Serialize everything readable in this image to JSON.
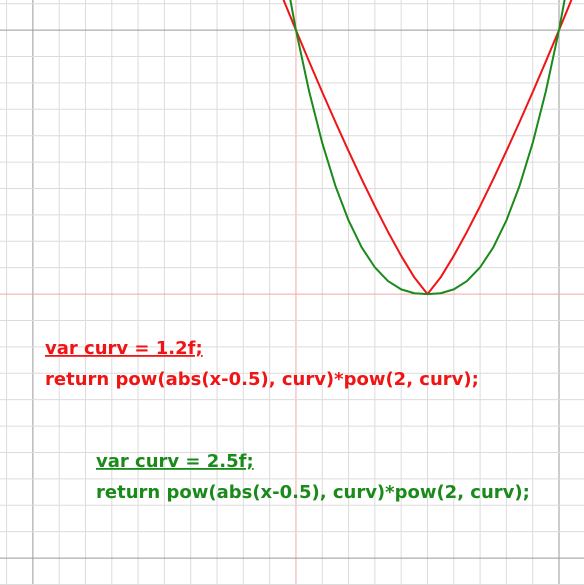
{
  "chart_data": {
    "type": "line",
    "x": [
      -0.05,
      0,
      0.05,
      0.1,
      0.15,
      0.2,
      0.25,
      0.3,
      0.35,
      0.4,
      0.45,
      0.5,
      0.55,
      0.6,
      0.65,
      0.7,
      0.75,
      0.8,
      0.85,
      0.9,
      0.95,
      1,
      1.05
    ],
    "series": [
      {
        "color": "#f01414",
        "values": [
          1.1212,
          1,
          0.8812,
          0.7651,
          0.6518,
          0.5417,
          0.4353,
          0.333,
          0.2358,
          0.145,
          0.0631,
          0,
          0.0631,
          0.145,
          0.2358,
          0.333,
          0.4353,
          0.5417,
          0.6518,
          0.7651,
          0.8812,
          1,
          1.1212
        ]
      },
      {
        "color": "#1a8a1a",
        "values": [
          1.269,
          1,
          0.7684,
          0.5724,
          0.41,
          0.2789,
          0.1768,
          0.1012,
          0.0493,
          0.0179,
          0.0032,
          0,
          0.0032,
          0.0179,
          0.0493,
          0.1012,
          0.1768,
          0.2789,
          0.41,
          0.5724,
          0.7684,
          1,
          1.269
        ]
      }
    ],
    "xlim": [
      -1.125,
      1.095
    ],
    "ylim": [
      -1.102,
      1.114
    ],
    "xticks": [
      -1.1,
      -1,
      -0.9,
      -0.8,
      -0.7,
      -0.6,
      -0.5,
      -0.4,
      -0.3,
      -0.2,
      -0.1,
      0,
      0.1,
      0.2,
      0.3,
      0.4,
      0.5,
      0.6,
      0.7,
      0.8,
      0.9,
      1
    ],
    "yticks": [
      -1.1,
      -1,
      -0.9,
      -0.8,
      -0.7,
      -0.6,
      -0.5,
      -0.4,
      -0.3,
      -0.2,
      -0.1,
      0,
      0.1,
      0.2,
      0.3,
      0.4,
      0.5,
      0.6,
      0.7,
      0.8,
      0.9,
      1,
      1.1
    ],
    "grid": true,
    "annotations": [
      {
        "color": "#f01414",
        "lines": [
          "var curv = 1.2f;",
          "return pow(abs(x-0.5), curv)*pow(2, curv);"
        ]
      },
      {
        "color": "#1a8a1a",
        "lines": [
          "var curv = 2.5f;",
          "return pow(abs(x-0.5), curv)*pow(2, curv);"
        ]
      }
    ]
  }
}
